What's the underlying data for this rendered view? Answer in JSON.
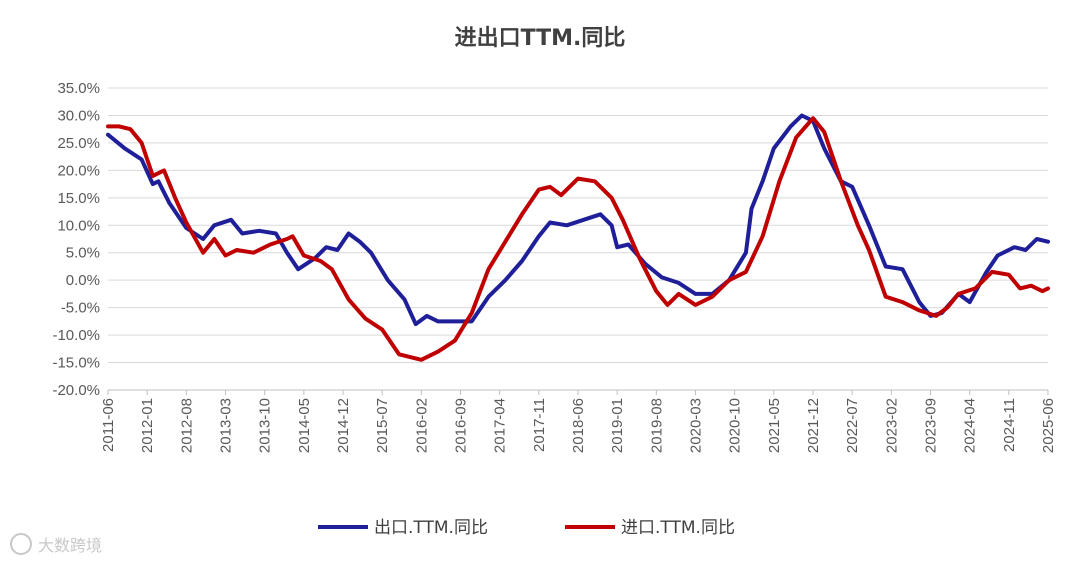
{
  "chart_data": {
    "type": "line",
    "title": "进出口TTM.同比",
    "xlabel": "",
    "ylabel": "",
    "ylim": [
      -20,
      35
    ],
    "ytick_step": 5,
    "ytick_labels": [
      "35.0%",
      "30.0%",
      "25.0%",
      "20.0%",
      "15.0%",
      "10.0%",
      "5.0%",
      "0.0%",
      "-5.0%",
      "-10.0%",
      "-15.0%",
      "-20.0%"
    ],
    "x_tick_labels": [
      "2011-06",
      "2012-01",
      "2012-08",
      "2013-03",
      "2013-10",
      "2014-05",
      "2014-12",
      "2015-07",
      "2016-02",
      "2016-09",
      "2017-04",
      "2017-11",
      "2018-06",
      "2019-01",
      "2019-08",
      "2020-03",
      "2020-10",
      "2021-05",
      "2021-12",
      "2022-07",
      "2023-02",
      "2023-09",
      "2024-04",
      "2024-11",
      "2025-06"
    ],
    "x_start": "2011-06",
    "x_end": "2025-06",
    "grid": true,
    "legend_position": "bottom",
    "series": [
      {
        "name": "出口.TTM.同比",
        "color": "#1f1f99",
        "points": [
          [
            "2011-06",
            26.5
          ],
          [
            "2011-09",
            24
          ],
          [
            "2011-12",
            22
          ],
          [
            "2012-02",
            17.5
          ],
          [
            "2012-03",
            18
          ],
          [
            "2012-05",
            14
          ],
          [
            "2012-08",
            9.5
          ],
          [
            "2012-11",
            7.5
          ],
          [
            "2013-01",
            10
          ],
          [
            "2013-04",
            11
          ],
          [
            "2013-06",
            8.5
          ],
          [
            "2013-09",
            9
          ],
          [
            "2013-12",
            8.5
          ],
          [
            "2014-02",
            5
          ],
          [
            "2014-04",
            2
          ],
          [
            "2014-07",
            4
          ],
          [
            "2014-09",
            6
          ],
          [
            "2014-11",
            5.5
          ],
          [
            "2015-01",
            8.5
          ],
          [
            "2015-03",
            7
          ],
          [
            "2015-05",
            5
          ],
          [
            "2015-08",
            0
          ],
          [
            "2015-11",
            -3.5
          ],
          [
            "2016-01",
            -8
          ],
          [
            "2016-03",
            -6.5
          ],
          [
            "2016-05",
            -7.5
          ],
          [
            "2016-08",
            -7.5
          ],
          [
            "2016-11",
            -7.5
          ],
          [
            "2017-02",
            -3
          ],
          [
            "2017-05",
            0
          ],
          [
            "2017-08",
            3.5
          ],
          [
            "2017-11",
            8
          ],
          [
            "2018-01",
            10.5
          ],
          [
            "2018-04",
            10
          ],
          [
            "2018-07",
            11
          ],
          [
            "2018-10",
            12
          ],
          [
            "2018-12",
            10
          ],
          [
            "2019-01",
            6
          ],
          [
            "2019-03",
            6.5
          ],
          [
            "2019-06",
            3
          ],
          [
            "2019-09",
            0.5
          ],
          [
            "2019-12",
            -0.5
          ],
          [
            "2020-03",
            -2.5
          ],
          [
            "2020-06",
            -2.5
          ],
          [
            "2020-09",
            0
          ],
          [
            "2020-12",
            5
          ],
          [
            "2021-01",
            13
          ],
          [
            "2021-03",
            18
          ],
          [
            "2021-05",
            24
          ],
          [
            "2021-08",
            28
          ],
          [
            "2021-10",
            30
          ],
          [
            "2021-12",
            29
          ],
          [
            "2022-02",
            24
          ],
          [
            "2022-05",
            18
          ],
          [
            "2022-07",
            17
          ],
          [
            "2022-10",
            10
          ],
          [
            "2023-01",
            2.5
          ],
          [
            "2023-04",
            2
          ],
          [
            "2023-07",
            -4
          ],
          [
            "2023-09",
            -6.5
          ],
          [
            "2023-11",
            -6
          ],
          [
            "2024-02",
            -2.5
          ],
          [
            "2024-04",
            -4
          ],
          [
            "2024-07",
            1.5
          ],
          [
            "2024-09",
            4.5
          ],
          [
            "2024-12",
            6
          ],
          [
            "2025-02",
            5.5
          ],
          [
            "2025-04",
            7.5
          ],
          [
            "2025-06",
            7
          ]
        ]
      },
      {
        "name": "进口.TTM.同比",
        "color": "#c00000",
        "points": [
          [
            "2011-06",
            28
          ],
          [
            "2011-08",
            28
          ],
          [
            "2011-10",
            27.5
          ],
          [
            "2011-12",
            25
          ],
          [
            "2012-02",
            19
          ],
          [
            "2012-04",
            20
          ],
          [
            "2012-06",
            15
          ],
          [
            "2012-08",
            10.5
          ],
          [
            "2012-11",
            5
          ],
          [
            "2013-01",
            7.5
          ],
          [
            "2013-03",
            4.5
          ],
          [
            "2013-05",
            5.5
          ],
          [
            "2013-08",
            5
          ],
          [
            "2013-11",
            6.5
          ],
          [
            "2014-02",
            7.5
          ],
          [
            "2014-03",
            8
          ],
          [
            "2014-05",
            4.5
          ],
          [
            "2014-08",
            3.5
          ],
          [
            "2014-10",
            2
          ],
          [
            "2015-01",
            -3.5
          ],
          [
            "2015-04",
            -7
          ],
          [
            "2015-07",
            -9
          ],
          [
            "2015-10",
            -13.5
          ],
          [
            "2016-02",
            -14.5
          ],
          [
            "2016-05",
            -13
          ],
          [
            "2016-08",
            -11
          ],
          [
            "2016-11",
            -6
          ],
          [
            "2017-02",
            2
          ],
          [
            "2017-05",
            7
          ],
          [
            "2017-08",
            12
          ],
          [
            "2017-11",
            16.5
          ],
          [
            "2018-01",
            17
          ],
          [
            "2018-03",
            15.5
          ],
          [
            "2018-06",
            18.5
          ],
          [
            "2018-09",
            18
          ],
          [
            "2018-12",
            15
          ],
          [
            "2019-02",
            11
          ],
          [
            "2019-05",
            4
          ],
          [
            "2019-08",
            -2
          ],
          [
            "2019-10",
            -4.5
          ],
          [
            "2019-12",
            -2.5
          ],
          [
            "2020-03",
            -4.5
          ],
          [
            "2020-06",
            -3
          ],
          [
            "2020-09",
            0
          ],
          [
            "2020-12",
            1.5
          ],
          [
            "2021-03",
            8
          ],
          [
            "2021-06",
            18
          ],
          [
            "2021-09",
            26
          ],
          [
            "2021-12",
            29.5
          ],
          [
            "2022-02",
            27
          ],
          [
            "2022-05",
            18
          ],
          [
            "2022-08",
            10
          ],
          [
            "2022-10",
            5.5
          ],
          [
            "2023-01",
            -3
          ],
          [
            "2023-04",
            -4
          ],
          [
            "2023-07",
            -5.5
          ],
          [
            "2023-10",
            -6.5
          ],
          [
            "2023-12",
            -5
          ],
          [
            "2024-02",
            -2.5
          ],
          [
            "2024-05",
            -1.5
          ],
          [
            "2024-08",
            1.5
          ],
          [
            "2024-11",
            1
          ],
          [
            "2025-01",
            -1.5
          ],
          [
            "2025-03",
            -1
          ],
          [
            "2025-05",
            -2
          ],
          [
            "2025-06",
            -1.5
          ]
        ]
      }
    ]
  },
  "watermark": {
    "text": "大数跨境"
  }
}
